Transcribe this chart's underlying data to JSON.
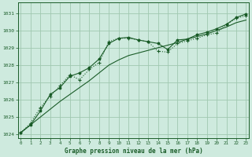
{
  "title": "Graphe pression niveau de la mer (hPa)",
  "background_color": "#ceeade",
  "grid_color": "#a0c8b0",
  "line_color": "#1a5c28",
  "xlim": [
    -0.3,
    23.3
  ],
  "ylim": [
    1023.8,
    1031.6
  ],
  "xticks": [
    0,
    1,
    2,
    3,
    4,
    5,
    6,
    7,
    8,
    9,
    10,
    11,
    12,
    13,
    14,
    15,
    16,
    17,
    18,
    19,
    20,
    21,
    22,
    23
  ],
  "yticks": [
    1024,
    1025,
    1026,
    1027,
    1028,
    1029,
    1030,
    1031
  ],
  "line_straight_x": [
    0,
    1,
    2,
    3,
    4,
    5,
    6,
    7,
    8,
    9,
    10,
    11,
    12,
    13,
    14,
    15,
    16,
    17,
    18,
    19,
    20,
    21,
    22,
    23
  ],
  "line_straight_y": [
    1024.1,
    1024.55,
    1025.0,
    1025.45,
    1025.9,
    1026.3,
    1026.7,
    1027.1,
    1027.55,
    1028.0,
    1028.3,
    1028.55,
    1028.7,
    1028.85,
    1029.0,
    1029.15,
    1029.3,
    1029.5,
    1029.65,
    1029.8,
    1030.0,
    1030.2,
    1030.45,
    1030.6
  ],
  "line_dotted_x": [
    0,
    1,
    2,
    3,
    4,
    5,
    6,
    7,
    8,
    9,
    10,
    11,
    12,
    13,
    14,
    15,
    16,
    17,
    18,
    19,
    20,
    21,
    22,
    23
  ],
  "line_dotted_y": [
    1024.1,
    1024.65,
    1025.55,
    1026.2,
    1026.8,
    1027.45,
    1027.15,
    1027.75,
    1028.15,
    1029.35,
    1029.55,
    1029.55,
    1029.45,
    1029.35,
    1028.8,
    1028.75,
    1029.25,
    1029.4,
    1029.55,
    1029.75,
    1029.85,
    1030.35,
    1030.7,
    1030.85
  ],
  "line_marked_x": [
    0,
    1,
    2,
    3,
    4,
    5,
    6,
    7,
    8,
    9,
    10,
    11,
    12,
    13,
    14,
    15,
    16,
    17,
    18,
    19,
    20,
    21,
    22,
    23
  ],
  "line_marked_y": [
    1024.1,
    1024.55,
    1025.35,
    1026.3,
    1026.7,
    1027.35,
    1027.55,
    1027.85,
    1028.35,
    1029.25,
    1029.55,
    1029.6,
    1029.45,
    1029.35,
    1029.25,
    1028.9,
    1029.45,
    1029.5,
    1029.75,
    1029.9,
    1030.1,
    1030.35,
    1030.75,
    1030.95
  ]
}
